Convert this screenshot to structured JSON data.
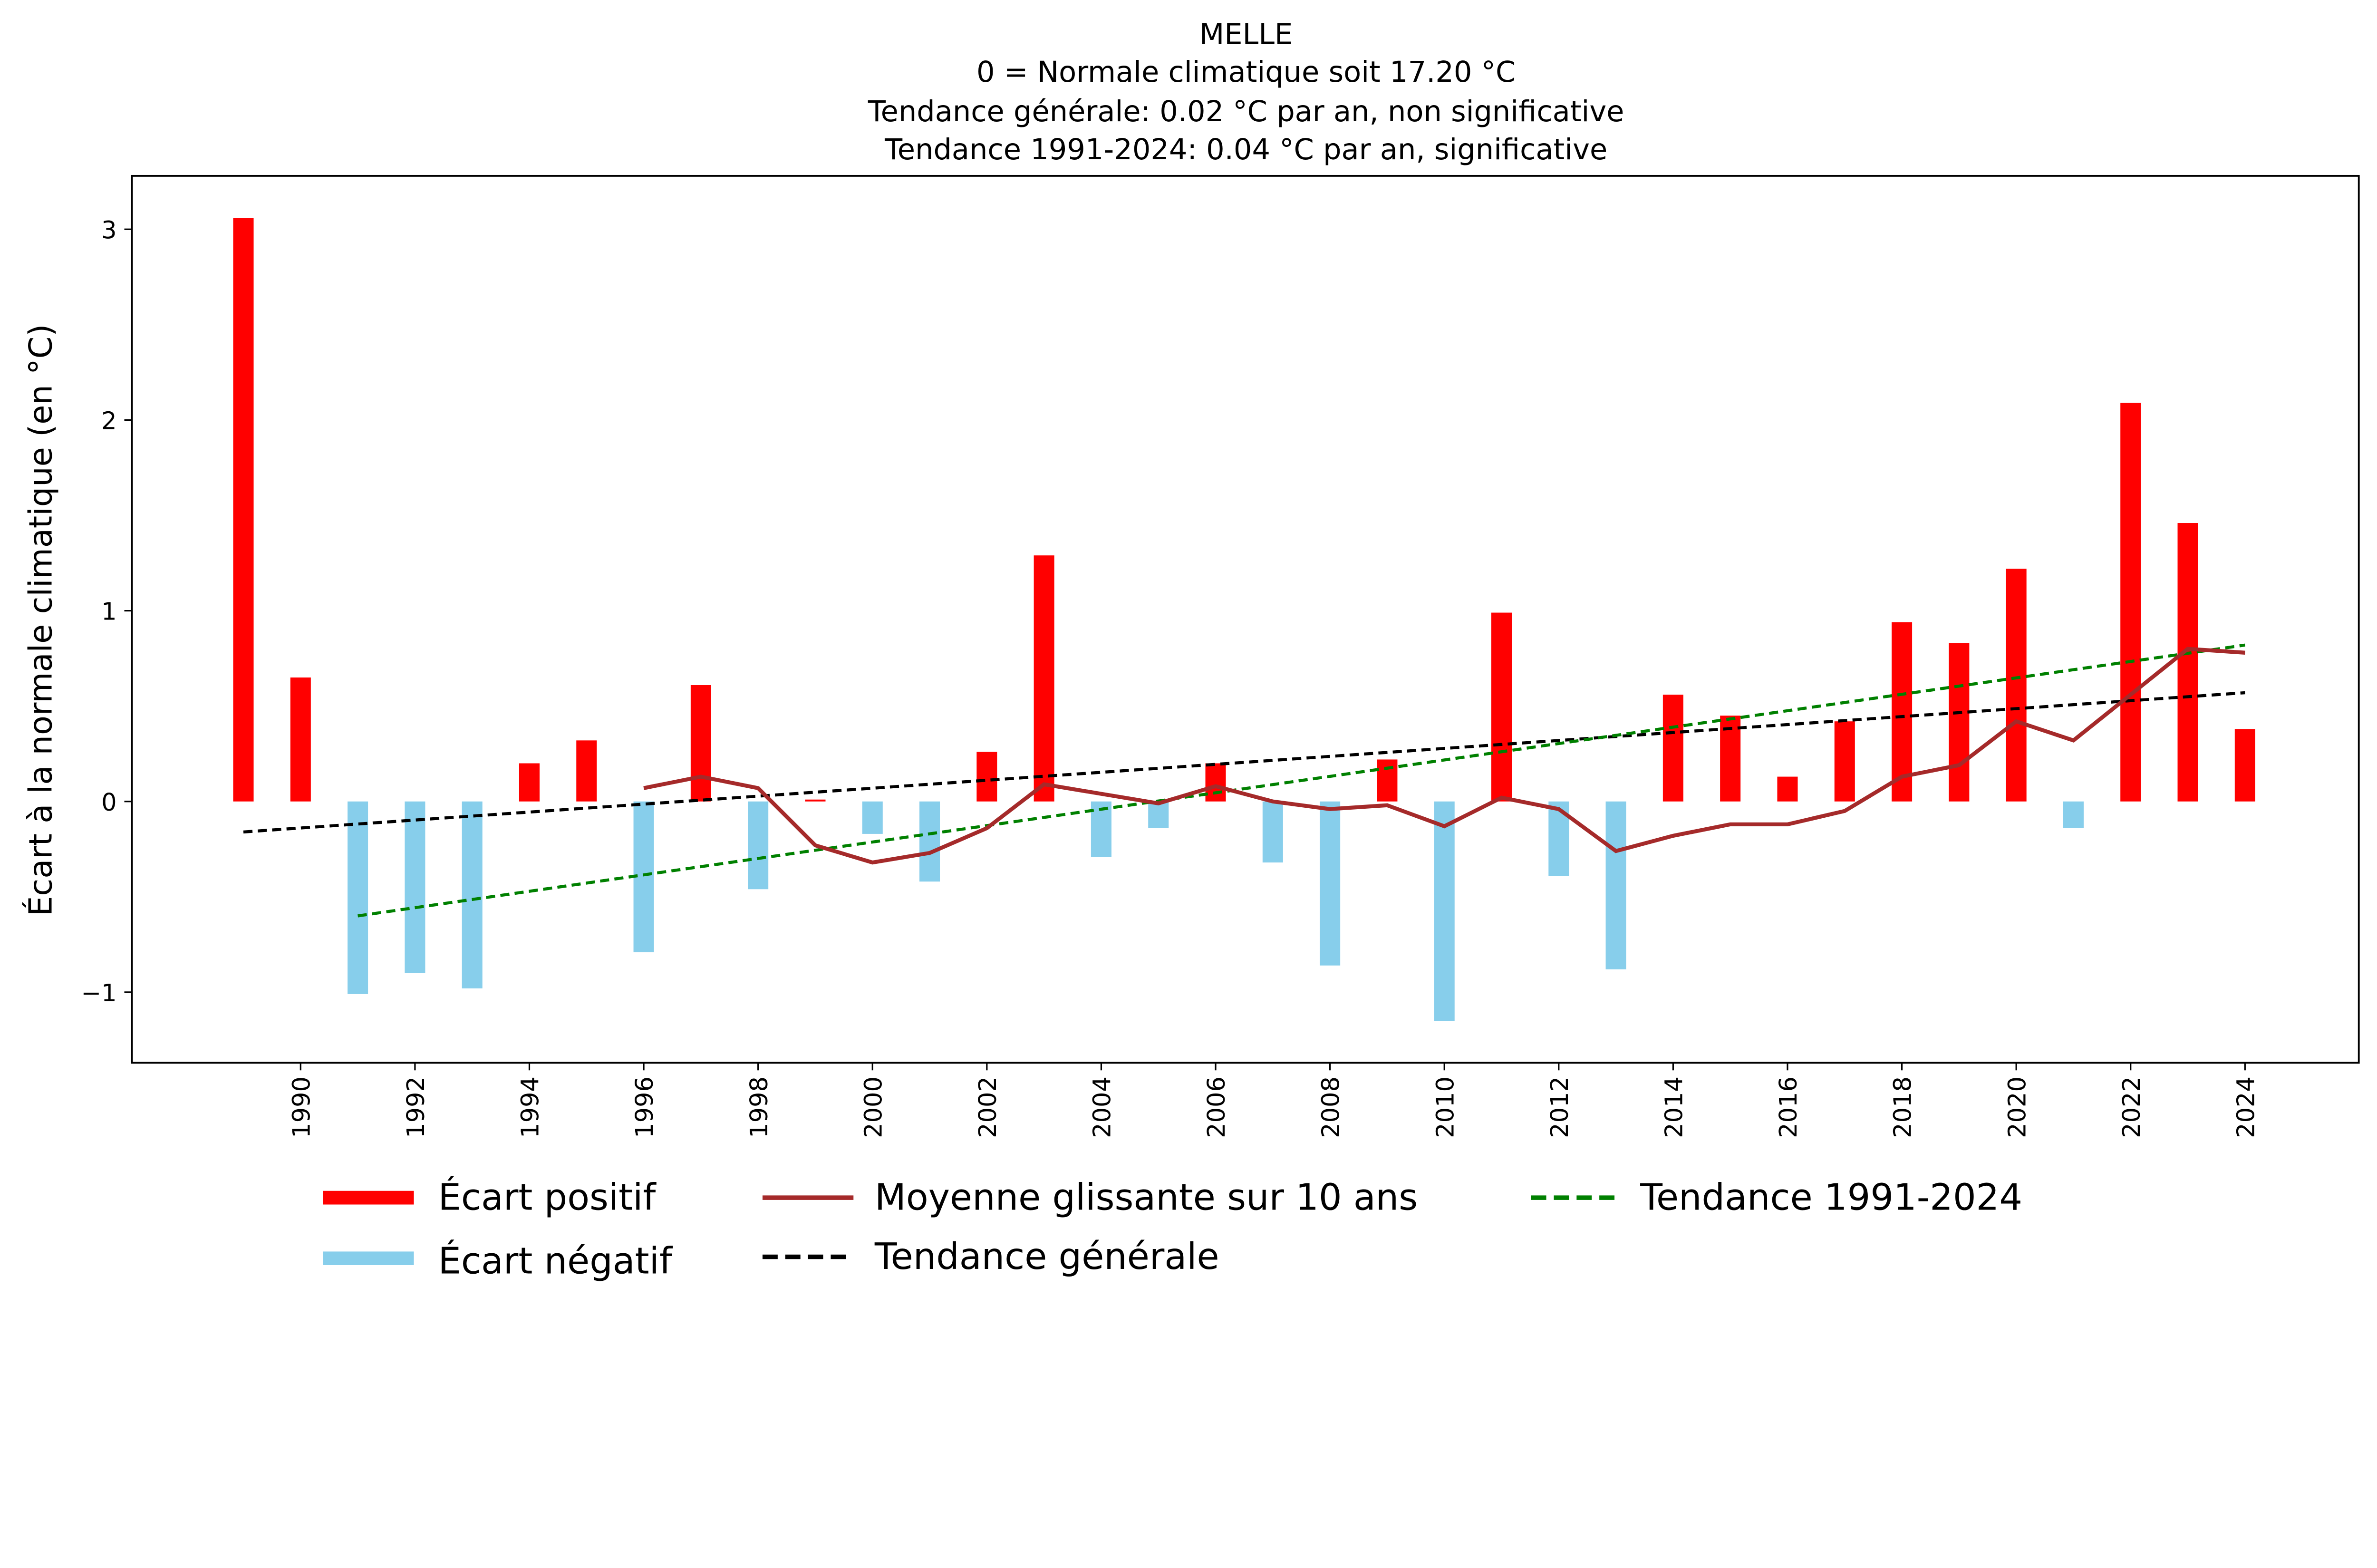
{
  "chart_data": {
    "type": "bar",
    "title_lines": [
      "MELLE",
      "0 = Normale climatique soit 17.20 °C",
      "Tendance générale: 0.02 °C par an, non significative",
      "Tendance 1991-2024: 0.04 °C par an, significative"
    ],
    "xlabel": "",
    "ylabel": "Écart à la normale climatique (en °C)",
    "xlim": [
      1987.05,
      2025.99
    ],
    "ylim": [
      -1.37,
      3.28
    ],
    "x_ticks": [
      1990,
      1992,
      1994,
      1996,
      1998,
      2000,
      2002,
      2004,
      2006,
      2008,
      2010,
      2012,
      2014,
      2016,
      2018,
      2020,
      2022,
      2024
    ],
    "y_ticks": [
      -1,
      0,
      1,
      2,
      3
    ],
    "grid": false,
    "legend_position": "bottom",
    "years": [
      1989,
      1990,
      1991,
      1992,
      1993,
      1994,
      1995,
      1996,
      1997,
      1998,
      1999,
      2000,
      2001,
      2002,
      2003,
      2004,
      2005,
      2006,
      2007,
      2008,
      2009,
      2010,
      2011,
      2012,
      2013,
      2014,
      2015,
      2016,
      2017,
      2018,
      2019,
      2020,
      2021,
      2022,
      2023,
      2024
    ],
    "anomalies": [
      3.06,
      0.65,
      -1.01,
      -0.9,
      -0.98,
      0.2,
      0.32,
      -0.79,
      0.61,
      -0.46,
      0.01,
      -0.17,
      -0.42,
      0.26,
      1.29,
      -0.29,
      -0.14,
      0.2,
      -0.32,
      -0.86,
      0.22,
      -1.15,
      0.99,
      -0.39,
      -0.88,
      0.56,
      0.45,
      0.13,
      0.42,
      0.94,
      0.83,
      1.22,
      -0.14,
      2.09,
      1.46,
      0.38
    ],
    "moving_average": {
      "name": "Moyenne glissante sur 10 ans",
      "years": [
        1996,
        1997,
        1998,
        1999,
        2000,
        2001,
        2002,
        2003,
        2004,
        2005,
        2006,
        2007,
        2008,
        2009,
        2010,
        2011,
        2012,
        2013,
        2014,
        2015,
        2016,
        2017,
        2018,
        2019,
        2020,
        2021,
        2022,
        2023,
        2024
      ],
      "values": [
        0.07,
        0.13,
        0.07,
        -0.23,
        -0.32,
        -0.27,
        -0.14,
        0.09,
        0.04,
        -0.01,
        0.08,
        0.0,
        -0.04,
        -0.02,
        -0.13,
        0.02,
        -0.04,
        -0.26,
        -0.18,
        -0.12,
        -0.12,
        -0.05,
        0.13,
        0.19,
        0.42,
        0.32,
        0.56,
        0.8,
        0.78
      ]
    },
    "trend_general": {
      "name": "Tendance générale",
      "x": [
        1989,
        2024
      ],
      "y": [
        -0.16,
        0.57
      ]
    },
    "trend_recent": {
      "name": "Tendance 1991-2024",
      "x": [
        1991,
        2024
      ],
      "y": [
        -0.6,
        0.82
      ]
    },
    "legend": {
      "positive": "Écart positif",
      "negative": "Écart négatif",
      "moving_average": "Moyenne glissante sur 10 ans",
      "trend_general": "Tendance générale",
      "trend_recent": "Tendance 1991-2024"
    },
    "colors": {
      "positive": "#ff0000",
      "negative": "#87ceeb",
      "moving_average": "#a52a2a",
      "trend_general": "#000000",
      "trend_recent": "#008000"
    }
  }
}
